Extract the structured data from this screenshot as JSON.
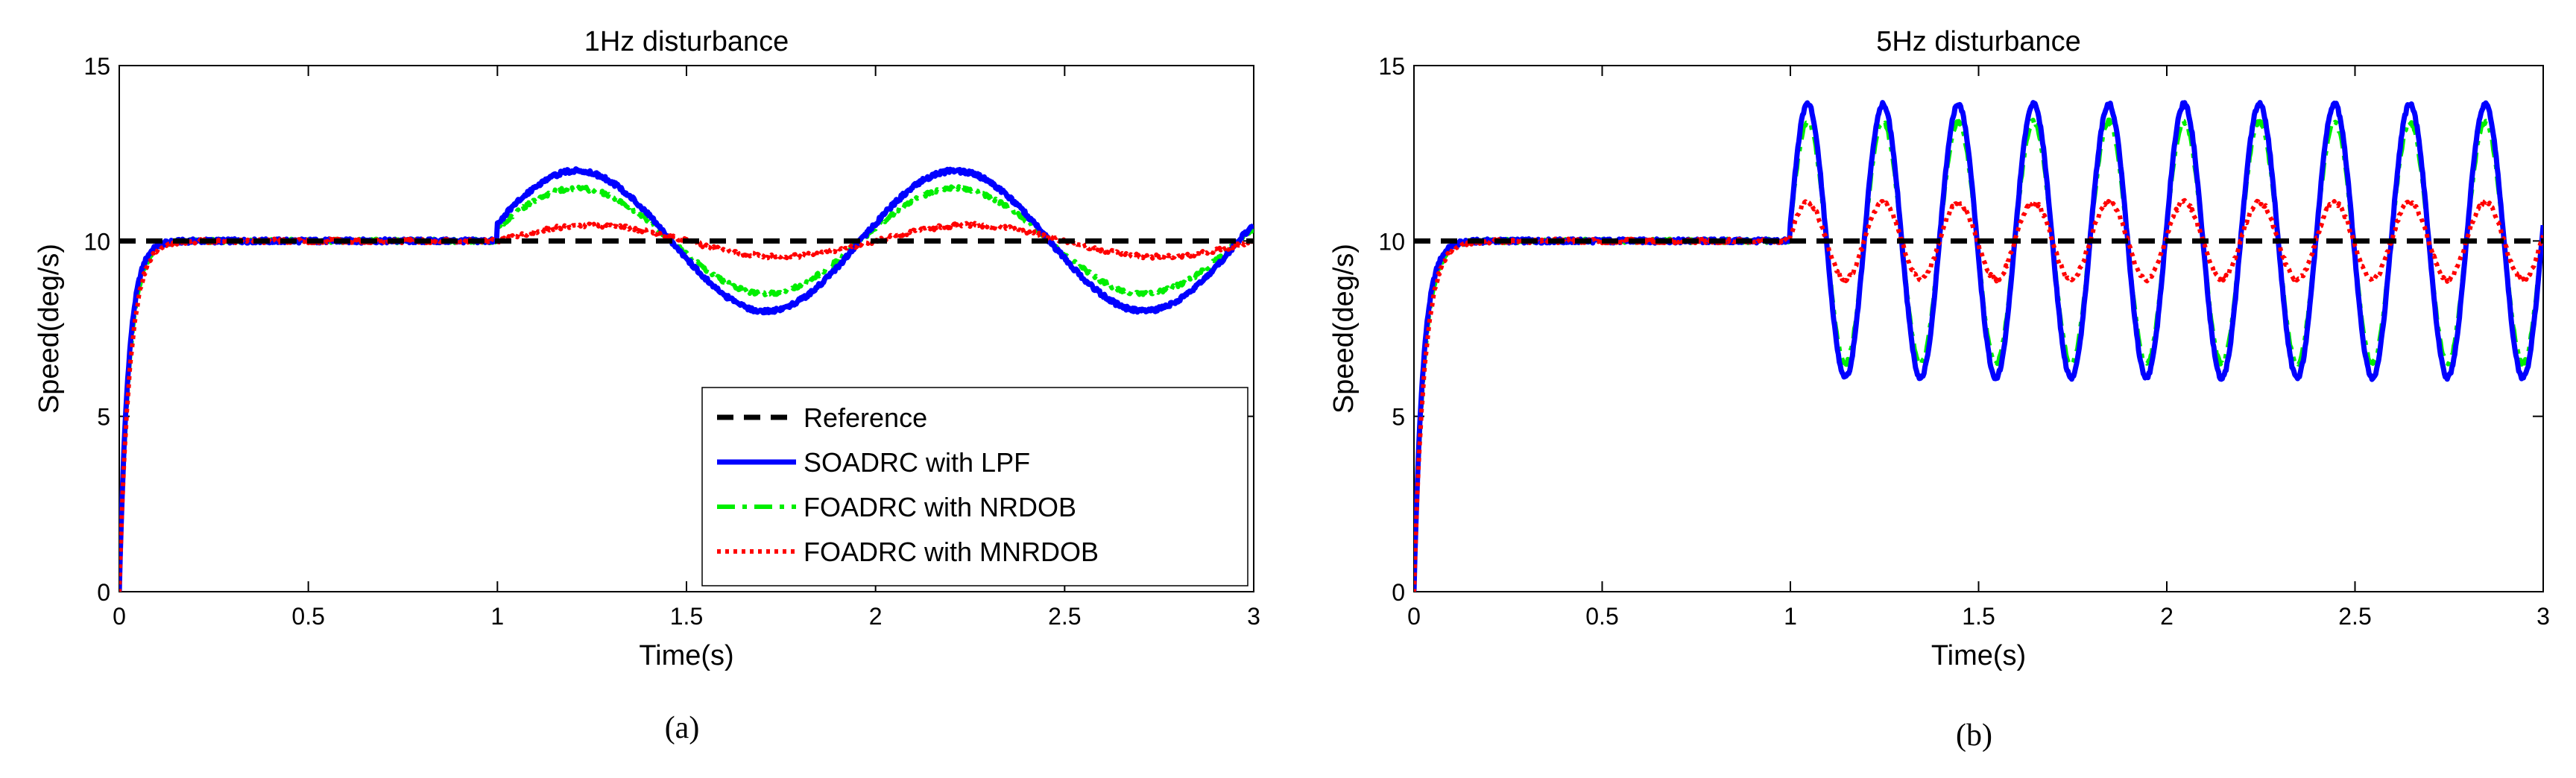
{
  "figure": {
    "captions": [
      "(a)",
      "(b)"
    ]
  },
  "colors": {
    "reference": "#000000",
    "soadrc": "#0000ff",
    "foadrc_nrdob": "#00ee00",
    "foadrc_mnrdob": "#ff0000"
  },
  "legend": {
    "entries": [
      "Reference",
      "SOADRC with LPF",
      "FOADRC with NRDOB",
      "FOADRC with MNRDOB"
    ]
  },
  "chart_data": [
    {
      "type": "line",
      "title": "1Hz disturbance",
      "xlabel": "Time(s)",
      "ylabel": "Speed(deg/s)",
      "xlim": [
        0,
        3
      ],
      "ylim": [
        0,
        15
      ],
      "xticks": [
        0,
        0.5,
        1,
        1.5,
        2,
        2.5,
        3
      ],
      "xtick_labels": [
        "0",
        "0.5",
        "1",
        "1.5",
        "2",
        "2.5",
        "3"
      ],
      "yticks": [
        0,
        5,
        10,
        15
      ],
      "ytick_labels": [
        "0",
        "5",
        "10",
        "15"
      ],
      "disturbance_start": 1.0,
      "disturbance_freq_hz": 1,
      "series": [
        {
          "name": "Reference",
          "style": "dashed",
          "reference": 10
        },
        {
          "name": "SOADRC with LPF",
          "style": "solid",
          "peak": 12.0,
          "trough": 8.0,
          "center": 10
        },
        {
          "name": "FOADRC with NRDOB",
          "style": "dashdot",
          "peak": 11.5,
          "trough": 8.5,
          "center": 10
        },
        {
          "name": "FOADRC with MNRDOB",
          "style": "dotted",
          "peak": 10.45,
          "trough": 9.55,
          "center": 10
        }
      ],
      "caption": "(a)"
    },
    {
      "type": "line",
      "title": "5Hz disturbance",
      "xlabel": "Time(s)",
      "ylabel": "Speed(deg/s)",
      "xlim": [
        0,
        3
      ],
      "ylim": [
        0,
        15
      ],
      "xticks": [
        0,
        0.5,
        1,
        1.5,
        2,
        2.5,
        3
      ],
      "xtick_labels": [
        "0",
        "0.5",
        "1",
        "1.5",
        "2",
        "2.5",
        "3"
      ],
      "yticks": [
        0,
        5,
        10,
        15
      ],
      "ytick_labels": [
        "0",
        "5",
        "10",
        "15"
      ],
      "disturbance_start": 1.0,
      "disturbance_freq_hz": 5,
      "series": [
        {
          "name": "Reference",
          "style": "dashed",
          "reference": 10
        },
        {
          "name": "SOADRC with LPF",
          "style": "solid",
          "peak": 13.9,
          "trough": 6.1,
          "center": 10
        },
        {
          "name": "FOADRC with NRDOB",
          "style": "dashdot",
          "peak": 13.4,
          "trough": 6.5,
          "center": 10
        },
        {
          "name": "FOADRC with MNRDOB",
          "style": "dotted",
          "peak": 11.1,
          "trough": 8.9,
          "center": 10
        }
      ],
      "caption": "(b)"
    }
  ]
}
